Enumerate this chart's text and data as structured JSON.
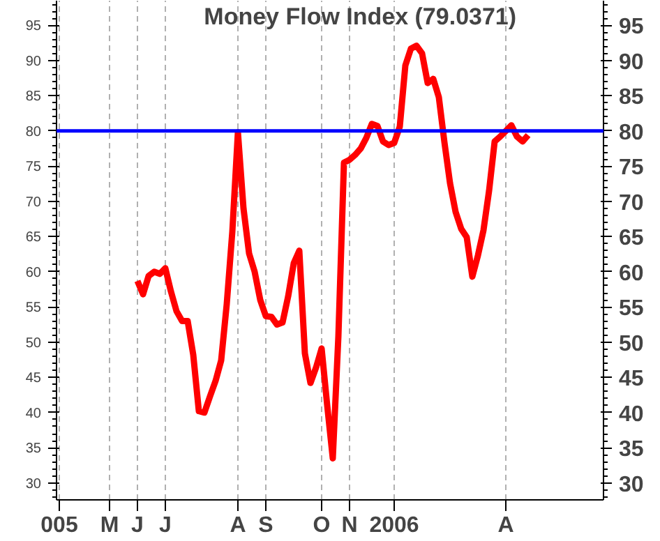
{
  "chart_data": {
    "type": "line",
    "title": "Money Flow Index (79.0371)",
    "categories": [
      "005",
      null,
      null,
      null,
      null,
      null,
      null,
      null,
      null,
      "M",
      null,
      null,
      null,
      null,
      "J",
      null,
      null,
      null,
      null,
      "J",
      null,
      null,
      null,
      null,
      null,
      null,
      null,
      null,
      null,
      null,
      null,
      null,
      "A",
      null,
      null,
      null,
      null,
      "S",
      null,
      null,
      null,
      null,
      null,
      null,
      null,
      null,
      null,
      "O",
      null,
      null,
      null,
      null,
      "N",
      null,
      null,
      null,
      null,
      null,
      null,
      null,
      "2006",
      null,
      null,
      null,
      null,
      null,
      null,
      null,
      null,
      null,
      null,
      null,
      null,
      null,
      null,
      null,
      null,
      null,
      null,
      null,
      "A",
      null,
      null,
      null,
      null,
      null,
      null,
      null,
      null,
      null,
      null,
      null,
      null,
      null,
      null,
      null,
      null,
      null
    ],
    "series": [
      {
        "color": "#ff0000",
        "values": [
          null,
          null,
          null,
          null,
          null,
          null,
          null,
          null,
          null,
          null,
          null,
          null,
          null,
          null,
          58.7,
          56.8,
          59.4,
          60.0,
          59.7,
          60.5,
          57.2,
          54.4,
          53,
          53,
          48.2,
          40.2,
          40,
          42.3,
          44.5,
          47.4,
          55.4,
          65.7,
          79.8,
          69,
          62.6,
          60,
          56,
          53.7,
          53.6,
          52.5,
          52.8,
          56.5,
          61.2,
          63,
          48.4,
          44.2,
          46.4,
          49.1,
          41,
          33.5,
          50.8,
          75.5,
          75.9,
          76.6,
          77.5,
          79,
          81,
          80.7,
          78.5,
          78,
          78.3,
          80.6,
          89.3,
          91.7,
          92.1,
          91,
          86.8,
          87.4,
          84.8,
          78.4,
          72.6,
          68.5,
          66.1,
          64.9,
          59.3,
          62.3,
          65.9,
          71.5,
          78.5,
          79.2,
          80,
          80.8,
          79.2,
          78.5,
          79.4,
          null,
          null,
          null,
          null,
          null,
          null,
          null,
          null,
          null,
          null,
          null,
          null,
          null
        ]
      }
    ],
    "ylim": [
      27.6,
      98.5
    ],
    "yticks": [
      30,
      35,
      40,
      45,
      50,
      55,
      60,
      65,
      70,
      75,
      80,
      85,
      90,
      95
    ],
    "y2lim": [
      27.6,
      98.5
    ],
    "y2ticks": [
      30,
      35,
      40,
      45,
      50,
      55,
      60,
      65,
      70,
      75,
      80,
      85,
      90,
      95
    ],
    "ref_lines": [
      {
        "axis": "y",
        "value": 80,
        "color": "#0000ff"
      }
    ],
    "grid": "x",
    "line_style": "solid"
  }
}
